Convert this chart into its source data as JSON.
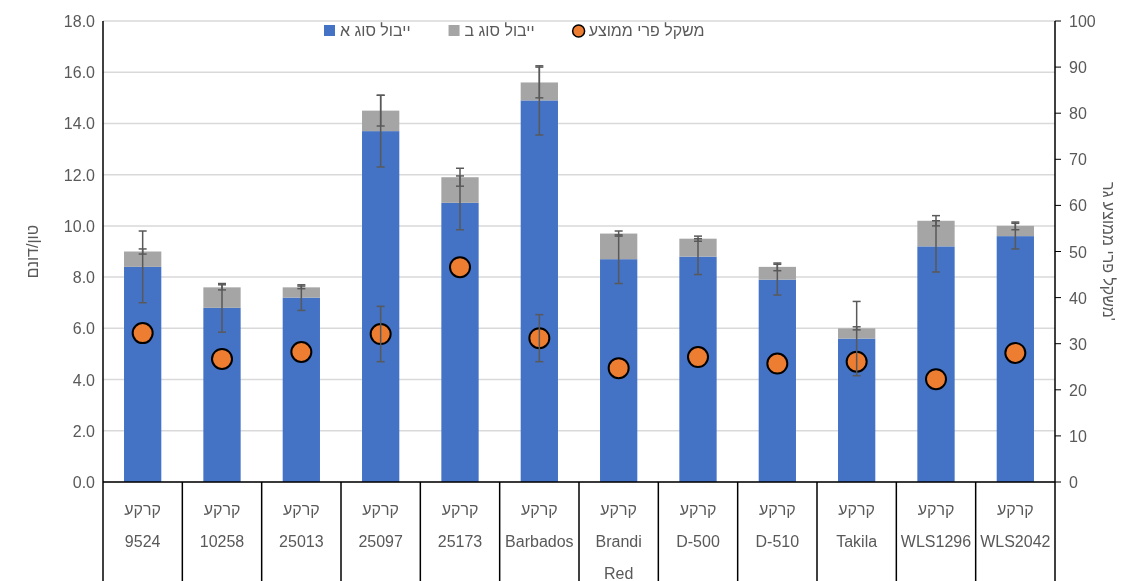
{
  "chart_data": {
    "type": "bar",
    "stacked": true,
    "legend": "top",
    "grid": "y",
    "marker": "circle",
    "ylabel": "טון/דונם",
    "y2label": "משקל פרי ממוצע גר'",
    "categories": [
      "קרקע 9524",
      "קרקע 10258",
      "קרקע 25013",
      "קרקע 25097",
      "קרקע 25173",
      "קרקע Barbados",
      "קרקע Brandi Red",
      "קרקע D-500",
      "קרקע D-510",
      "קרקע Takila",
      "קרקע WLS1296",
      "קרקע WLS2042"
    ],
    "ylim": [
      0,
      18
    ],
    "yticks": [
      {
        "value": 0,
        "label": "0.0"
      },
      {
        "value": 2,
        "label": "2.0"
      },
      {
        "value": 4,
        "label": "4.0"
      },
      {
        "value": 6,
        "label": "6.0"
      },
      {
        "value": 8,
        "label": "8.0"
      },
      {
        "value": 10,
        "label": "10.0"
      },
      {
        "value": 12,
        "label": "12.0"
      },
      {
        "value": 14,
        "label": "14.0"
      },
      {
        "value": 16,
        "label": "16.0"
      },
      {
        "value": 18,
        "label": "18.0"
      }
    ],
    "y2lim": [
      0,
      100
    ],
    "y2ticks": [
      0,
      10,
      20,
      30,
      40,
      50,
      60,
      70,
      80,
      90,
      100
    ],
    "series": [
      {
        "name": "ייבול סוג א",
        "color": "#4472c4",
        "values": [
          8.4,
          6.8,
          7.2,
          13.7,
          10.9,
          14.9,
          8.7,
          8.8,
          7.9,
          5.6,
          9.2,
          9.6
        ],
        "errors": [
          1.4,
          0.95,
          0.5,
          1.4,
          1.05,
          1.35,
          0.95,
          0.7,
          0.6,
          1.45,
          1.0,
          0.5
        ]
      },
      {
        "name": "ייבול סוג ב",
        "color": "#a5a5a5",
        "values": [
          0.6,
          0.8,
          0.4,
          0.8,
          1.0,
          0.7,
          1.0,
          0.7,
          0.5,
          0.4,
          1.0,
          0.4
        ],
        "errors": [
          0.1,
          0.1,
          0.05,
          0.6,
          0.35,
          0.6,
          0.1,
          0.1,
          0.15,
          0.06,
          0.2,
          0.15
        ]
      },
      {
        "name": "משקל פרי ממוצע",
        "type": "scatter",
        "axis": "y2",
        "color": "#ed7d31",
        "values": [
          32.3,
          26.7,
          28.2,
          32.1,
          46.6,
          31.2,
          24.7,
          27.1,
          25.7,
          26.1,
          22.3,
          28.0
        ],
        "errors": [
          null,
          null,
          null,
          6,
          null,
          5.1,
          null,
          null,
          null,
          null,
          null,
          null
        ]
      }
    ]
  }
}
